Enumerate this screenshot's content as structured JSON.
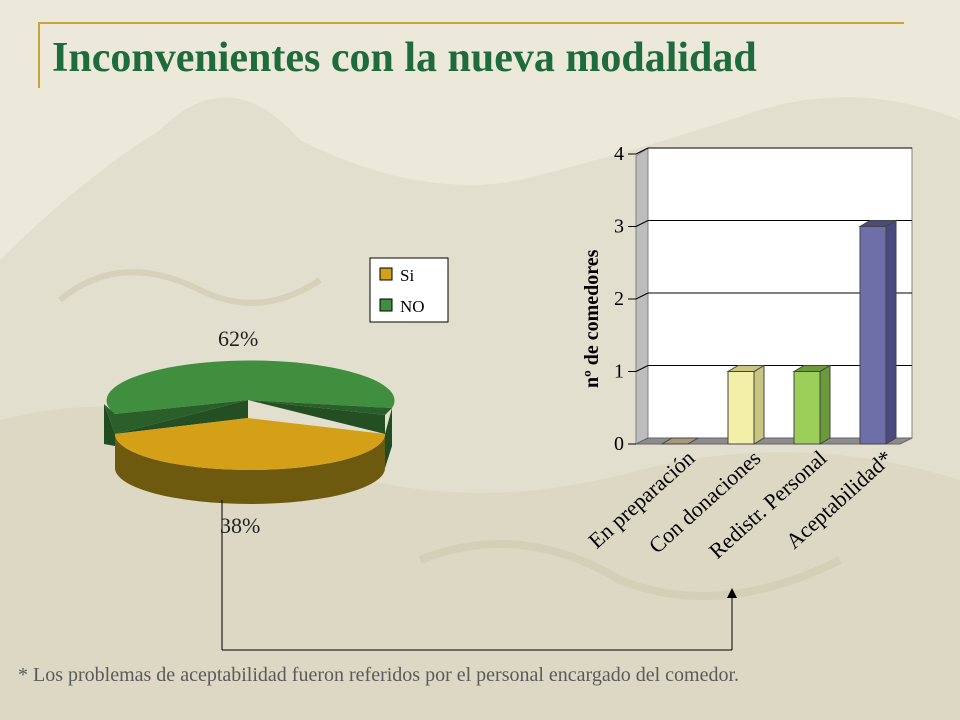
{
  "title": "Inconvenientes con la nueva modalidad",
  "footnote": "* Los problemas de aceptabilidad fueron referidos por el personal encargado del comedor.",
  "colors": {
    "title": "#1e6b3b",
    "si": "#d4a017",
    "no": "#3f8f3f",
    "bar_preparacion": "#d8c8a8",
    "bar_donaciones": "#f2f0a8",
    "bar_personal": "#9ccf5a",
    "bar_aceptabilidad": "#6e6ea8"
  },
  "chart_data": [
    {
      "type": "pie",
      "style": "3d",
      "slices": [
        {
          "label": "Si",
          "value": 38,
          "display": "38%"
        },
        {
          "label": "NO",
          "value": 62,
          "display": "62%"
        }
      ],
      "legend": [
        "Si",
        "NO"
      ],
      "legend_position": "top-right"
    },
    {
      "type": "bar",
      "style": "3d",
      "categories": [
        "En preparación",
        "Con donaciones",
        "Redistr. Personal",
        "Aceptabilidad*"
      ],
      "values": [
        0,
        1,
        1,
        3
      ],
      "ylabel": "nº de comedores",
      "ylim": [
        0,
        4
      ],
      "yticks": [
        "0",
        "1",
        "2",
        "3",
        "4"
      ],
      "grid": true
    }
  ]
}
